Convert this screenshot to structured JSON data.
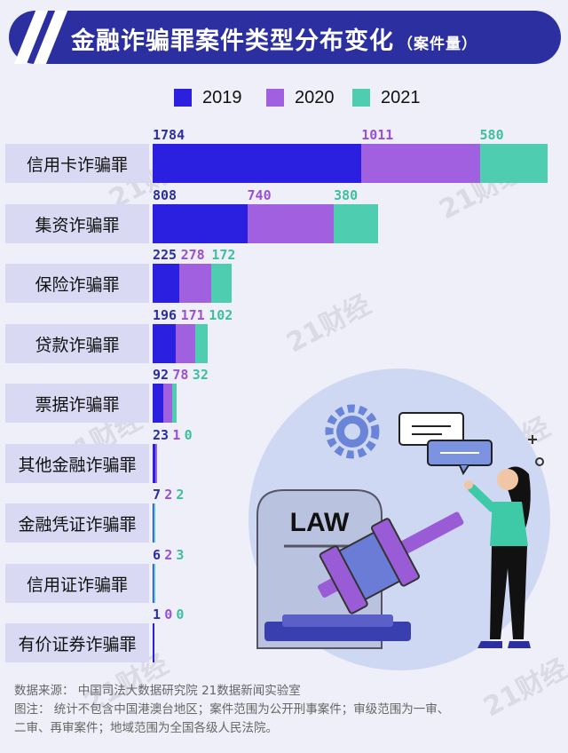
{
  "title": {
    "main": "金融诈骗罪案件类型分布变化",
    "sub": "（案件量）"
  },
  "colors": {
    "title_bg": "#2c2fa0",
    "label_bg": "#d9d9f3",
    "bg": "#eeeff8"
  },
  "chart_data": {
    "type": "bar",
    "orientation": "horizontal",
    "stacked": true,
    "categories": [
      "信用卡诈骗罪",
      "集资诈骗罪",
      "保险诈骗罪",
      "贷款诈骗罪",
      "票据诈骗罪",
      "其他金融诈骗罪",
      "金融凭证诈骗罪",
      "信用证诈骗罪",
      "有价证券诈骗罪"
    ],
    "series": [
      {
        "name": "2019",
        "color": "#2b1fe0",
        "label_color": "#2c2fa0",
        "values": [
          1784,
          808,
          225,
          196,
          92,
          23,
          7,
          6,
          1
        ]
      },
      {
        "name": "2020",
        "color": "#a060e0",
        "label_color": "#9a4fd6",
        "values": [
          1011,
          740,
          278,
          171,
          78,
          1,
          2,
          2,
          0
        ]
      },
      {
        "name": "2021",
        "color": "#4ecdb0",
        "label_color": "#3dbfa0",
        "values": [
          580,
          380,
          172,
          102,
          32,
          0,
          2,
          3,
          0
        ]
      }
    ],
    "legend_position": "top"
  },
  "watermark": "21财经",
  "illustration": {
    "sign_text": "LAW"
  },
  "footer": {
    "line1": "数据来源：  中国司法大数据研究院    21数据新闻实验室",
    "line2": "图注：  统计不包含中国港澳台地区；案件范围为公开刑事案件；审级范围为一审、",
    "line3": "二审、再审案件；地域范围为全国各级人民法院。"
  }
}
